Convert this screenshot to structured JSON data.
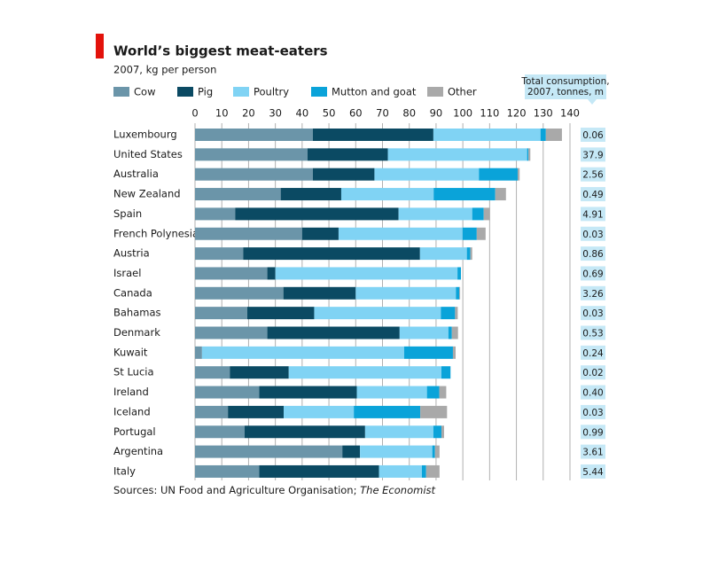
{
  "chart_data": {
    "type": "stacked-bar-horizontal",
    "title": "World’s biggest meat-eaters",
    "subtitle": "2007, kg per person",
    "categories": [
      "Luxembourg",
      "United States",
      "Australia",
      "New Zealand",
      "Spain",
      "French Polynesia",
      "Austria",
      "Israel",
      "Canada",
      "Bahamas",
      "Denmark",
      "Kuwait",
      "St Lucia",
      "Ireland",
      "Iceland",
      "Portugal",
      "Argentina",
      "Italy"
    ],
    "series": [
      {
        "name": "Cow",
        "color": "#6b95a9",
        "values": [
          44,
          42,
          44,
          32,
          15,
          40,
          18,
          27,
          33,
          19.5,
          27,
          2.6,
          13,
          24,
          12.3,
          18.5,
          55,
          24
        ]
      },
      {
        "name": "Pig",
        "color": "#0b4a63",
        "values": [
          45,
          30,
          23,
          22.6,
          61,
          13.6,
          66,
          3,
          27,
          25,
          49.4,
          0,
          22,
          36.4,
          20.8,
          45,
          6.6,
          44.7
        ]
      },
      {
        "name": "Poultry",
        "color": "#80d3f4",
        "values": [
          40,
          52,
          39,
          34.5,
          27.5,
          46.3,
          17.5,
          68,
          37.4,
          47.3,
          18.2,
          75.5,
          57,
          26.2,
          26.2,
          25.5,
          27,
          16
        ]
      },
      {
        "name": "Mutton and goat",
        "color": "#0aa3d9",
        "values": [
          2,
          0.5,
          14.5,
          23,
          4.3,
          5.3,
          1.3,
          1.3,
          1.3,
          5.3,
          1.3,
          18.2,
          3.4,
          4.6,
          24.8,
          3,
          1,
          1.6
        ]
      },
      {
        "name": "Other",
        "color": "#a9a9a9",
        "values": [
          6,
          0.7,
          0.7,
          4,
          2.3,
          3.3,
          0.7,
          0,
          0.3,
          1,
          2.3,
          1,
          0,
          2.6,
          10,
          1,
          1.7,
          5
        ]
      }
    ],
    "xlim": [
      0,
      140
    ],
    "xticks": [
      0,
      10,
      20,
      30,
      40,
      50,
      60,
      70,
      80,
      90,
      100,
      110,
      120,
      130,
      140
    ],
    "grid": true,
    "total_consumption": {
      "title": [
        "Total consumption,",
        "2007, tonnes, m"
      ],
      "values": [
        0.06,
        37.9,
        2.56,
        0.49,
        4.91,
        0.03,
        0.86,
        0.69,
        3.26,
        0.03,
        0.53,
        0.24,
        0.02,
        0.4,
        0.03,
        0.99,
        3.61,
        5.44
      ],
      "value_labels": [
        "0.06",
        "37.9",
        "2.56",
        "0.49",
        "4.91",
        "0.03",
        "0.86",
        "0.69",
        "3.26",
        "0.03",
        "0.53",
        "0.24",
        "0.02",
        "0.40",
        "0.03",
        "0.99",
        "3.61",
        "5.44"
      ]
    },
    "source": [
      "Sources: UN Food and Agriculture Organisation; ",
      "The Economist"
    ]
  }
}
